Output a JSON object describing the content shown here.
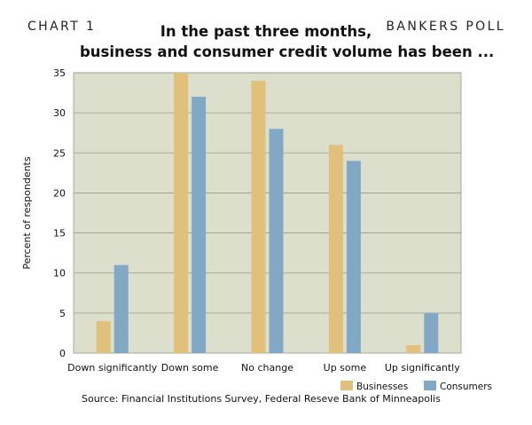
{
  "header": {
    "chart_number": "CHART 1",
    "poll_label": "BANKERS POLL",
    "title_line1": "In the past three months,",
    "title_line2": "business and consumer credit volume has been ..."
  },
  "source": "Source: Financial Institutions Survey, Federal Reseve Bank of Minneapolis",
  "chart_data": {
    "type": "bar",
    "title": "In the past three months, business and consumer credit volume has been ...",
    "xlabel": "",
    "ylabel": "Percent of respondents",
    "ylim": [
      0,
      35
    ],
    "yticks": [
      0,
      5,
      10,
      15,
      20,
      25,
      30,
      35
    ],
    "grid": true,
    "legend_position": "bottom-right",
    "plot_background": "#dddfcd",
    "categories": [
      "Down significantly",
      "Down some",
      "No change",
      "Up some",
      "Up significantly"
    ],
    "series": [
      {
        "name": "Businesses",
        "color": "#e1c07c",
        "values": [
          4,
          35,
          34,
          26,
          1
        ]
      },
      {
        "name": "Consumers",
        "color": "#81a9c6",
        "values": [
          11,
          32,
          28,
          24,
          5
        ]
      }
    ]
  }
}
